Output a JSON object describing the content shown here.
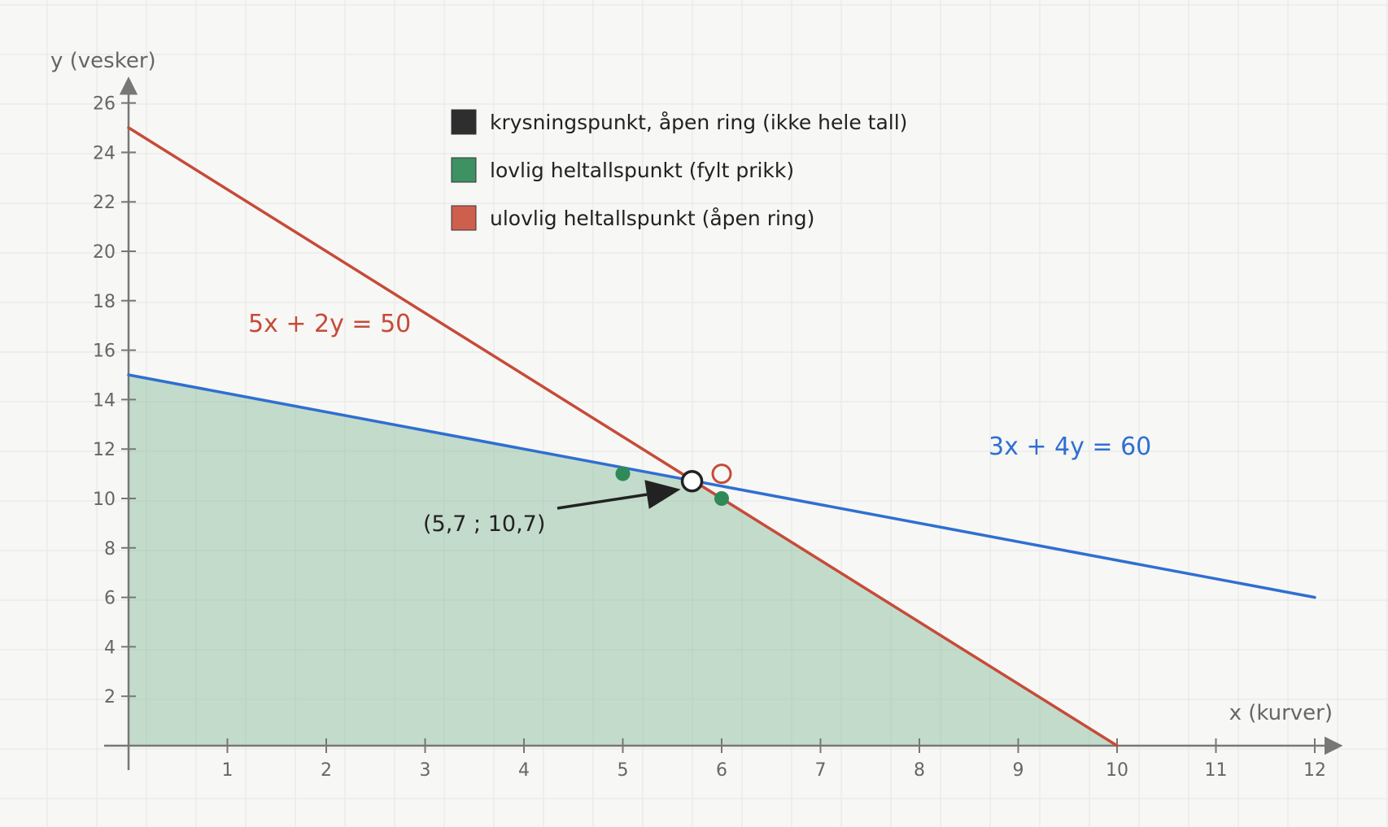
{
  "chart_data": {
    "type": "line",
    "xlabel": "x (kurver)",
    "ylabel": "y (vesker)",
    "xlim": [
      0,
      12
    ],
    "ylim": [
      0,
      26
    ],
    "x_ticks": [
      1,
      2,
      3,
      4,
      5,
      6,
      7,
      8,
      9,
      10,
      11,
      12
    ],
    "y_ticks": [
      2,
      4,
      6,
      8,
      10,
      12,
      14,
      16,
      18,
      20,
      22,
      24,
      26
    ],
    "grid": true,
    "series": [
      {
        "name": "5x + 2y = 50",
        "x": [
          0,
          10
        ],
        "y": [
          25,
          0
        ],
        "color": "#c64b38"
      },
      {
        "name": "3x + 4y = 60",
        "x": [
          0,
          12
        ],
        "y": [
          15,
          6
        ],
        "color": "#2f6fd1"
      }
    ],
    "feasible_region": {
      "color": "#6fae86",
      "polygon": [
        [
          0,
          0
        ],
        [
          0,
          15
        ],
        [
          5.7,
          10.7
        ],
        [
          10,
          0
        ]
      ]
    },
    "points": [
      {
        "x": 5.7,
        "y": 10.7,
        "kind": "intersection",
        "color": "#222222"
      },
      {
        "x": 5,
        "y": 11,
        "kind": "legal",
        "color": "#2f8a58"
      },
      {
        "x": 6,
        "y": 10,
        "kind": "legal",
        "color": "#2f8a58"
      },
      {
        "x": 6,
        "y": 11,
        "kind": "illegal",
        "color": "#c64b38"
      }
    ],
    "annotation": {
      "text": "(5,7 ; 10,7)",
      "points_to": [
        5.7,
        10.7
      ]
    },
    "legend": {
      "placement": "top-center",
      "items": [
        {
          "label": "krysningspunkt, åpen ring (ikke hele tall)",
          "color": "#2e2e2e"
        },
        {
          "label": "lovlig heltallspunkt (fylt prikk)",
          "color": "#3d9162"
        },
        {
          "label": "ulovlig heltallspunkt (åpen ring)",
          "color": "#cf5f4d"
        }
      ]
    }
  }
}
